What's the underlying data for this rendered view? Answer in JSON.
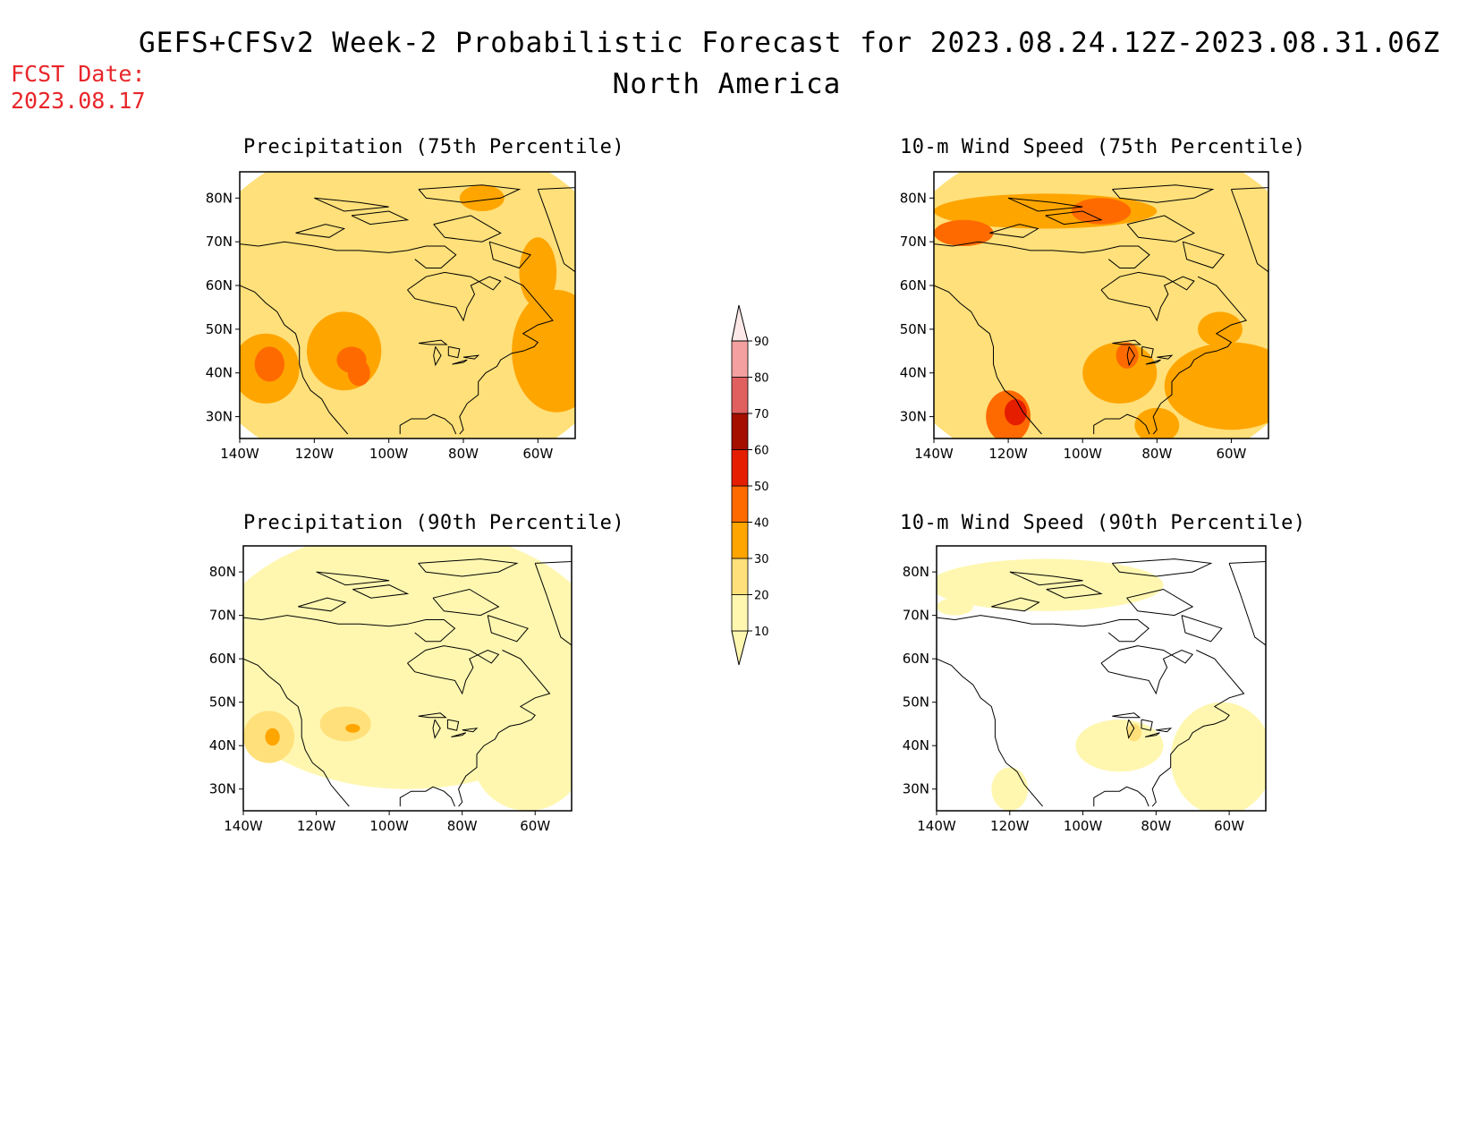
{
  "header": {
    "title_line1": "GEFS+CFSv2 Week-2 Probabilistic Forecast for 2023.08.24.12Z-2023.08.31.06Z",
    "title_line2": "North America",
    "fcst_label": "FCST Date:",
    "fcst_date": "2023.08.17"
  },
  "panels": [
    {
      "id": "precip-75",
      "title": "Precipitation (75th Percentile)"
    },
    {
      "id": "wind-75",
      "title": "10-m Wind Speed (75th Percentile)"
    },
    {
      "id": "precip-90",
      "title": "Precipitation (90th Percentile)"
    },
    {
      "id": "wind-90",
      "title": "10-m Wind Speed (90th Percentile)"
    }
  ],
  "axes": {
    "lat_ticks": [
      "80N",
      "70N",
      "60N",
      "50N",
      "40N",
      "30N"
    ],
    "lon_ticks": [
      "140W",
      "120W",
      "100W",
      "80W",
      "60W"
    ]
  },
  "colorbar": {
    "levels": [
      "10",
      "20",
      "30",
      "40",
      "50",
      "60",
      "70",
      "80",
      "90"
    ],
    "colors": [
      "#fff7b0",
      "#ffe07a",
      "#ffa500",
      "#ff6a00",
      "#e61e00",
      "#a50f00",
      "#e06060",
      "#f4a0a0",
      "#fde8e8"
    ]
  }
}
